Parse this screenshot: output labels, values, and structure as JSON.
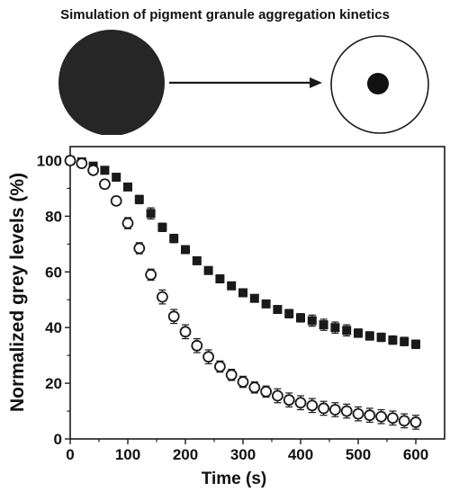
{
  "figure": {
    "title": "Simulation of pigment granule aggregation kinetics"
  },
  "colors": {
    "ink": "#1a1a1a",
    "background": "#ffffff"
  },
  "chart_data": {
    "type": "scatter",
    "title": "",
    "xlabel": "Time (s)",
    "ylabel": "Normalized grey levels (%)",
    "xlim": [
      0,
      650
    ],
    "ylim": [
      0,
      105
    ],
    "xticks": [
      0,
      100,
      200,
      300,
      400,
      500,
      600
    ],
    "yticks": [
      0,
      20,
      40,
      60,
      80,
      100
    ],
    "grid": false,
    "legend": "none",
    "x": [
      0,
      20,
      40,
      60,
      80,
      100,
      120,
      140,
      160,
      180,
      200,
      220,
      240,
      260,
      280,
      300,
      320,
      340,
      360,
      380,
      400,
      420,
      440,
      460,
      480,
      500,
      520,
      540,
      560,
      580,
      600
    ],
    "series": [
      {
        "marker": "filled-square",
        "values": [
          100,
          99.5,
          98,
          96.5,
          94,
          90.5,
          86,
          81,
          76,
          72,
          68,
          64,
          60.5,
          57.5,
          55,
          52.5,
          50.5,
          48.5,
          46.5,
          45,
          43.5,
          42.5,
          41,
          40,
          39,
          38,
          37,
          36.5,
          35.5,
          35,
          34
        ],
        "errors": [
          0,
          0.5,
          0.5,
          0.5,
          0.8,
          1,
          1.5,
          2,
          1.5,
          1.5,
          1,
          1,
          1,
          1,
          1,
          1,
          1,
          1,
          1,
          1.5,
          1.5,
          2,
          2,
          2,
          2,
          1.5,
          1.5,
          1.5,
          1.5,
          1.5,
          1.5
        ]
      },
      {
        "marker": "open-circle",
        "values": [
          100,
          99,
          96.5,
          91.5,
          85.5,
          77.5,
          68.5,
          59,
          51,
          44,
          38.5,
          33.5,
          29.5,
          26,
          23,
          20.5,
          18.5,
          17,
          15.5,
          14,
          13,
          12,
          11,
          10.5,
          10,
          9,
          8.5,
          8,
          7.5,
          6.5,
          6
        ],
        "errors": [
          0,
          1,
          1,
          1.5,
          1.5,
          2,
          2,
          2,
          2.5,
          2.5,
          2.5,
          2.5,
          2.5,
          2,
          2,
          2,
          2,
          2,
          2.5,
          2.5,
          2.5,
          2.5,
          2.5,
          2.5,
          2.5,
          2.5,
          2.5,
          2.5,
          2.5,
          2.5,
          2.5
        ]
      }
    ]
  }
}
